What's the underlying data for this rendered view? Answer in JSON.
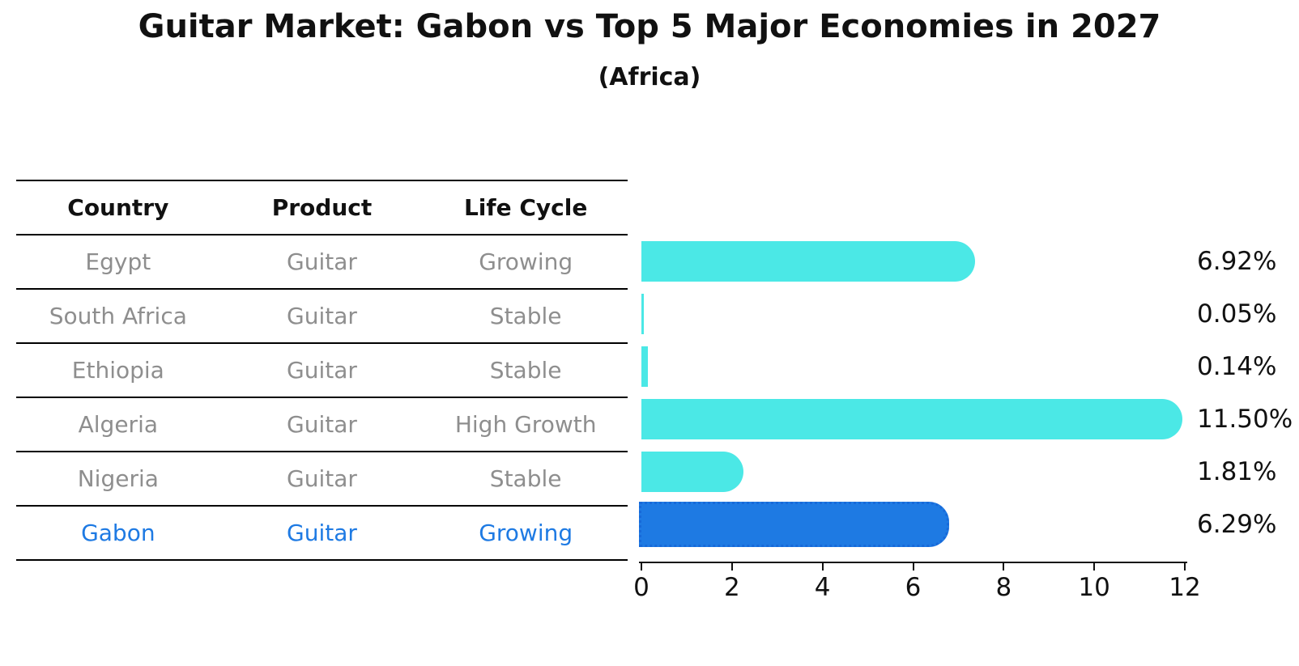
{
  "title": "Guitar Market: Gabon vs Top 5 Major Economies in 2027",
  "subtitle": "(Africa)",
  "table": {
    "headers": [
      "Country",
      "Product",
      "Life Cycle"
    ],
    "rows": [
      {
        "country": "Egypt",
        "product": "Guitar",
        "life_cycle": "Growing",
        "highlighted": false
      },
      {
        "country": "South Africa",
        "product": "Guitar",
        "life_cycle": "Stable",
        "highlighted": false
      },
      {
        "country": "Ethiopia",
        "product": "Guitar",
        "life_cycle": "Stable",
        "highlighted": false
      },
      {
        "country": "Algeria",
        "product": "Guitar",
        "life_cycle": "High Growth",
        "highlighted": false
      },
      {
        "country": "Nigeria",
        "product": "Guitar",
        "life_cycle": "Stable",
        "highlighted": false
      },
      {
        "country": "Gabon",
        "product": "Guitar",
        "life_cycle": "Growing",
        "highlighted": true
      }
    ]
  },
  "chart_data": {
    "type": "bar",
    "orientation": "horizontal",
    "title": "Guitar Market: Gabon vs Top 5 Major Economies in 2027",
    "subtitle": "(Africa)",
    "categories": [
      "Egypt",
      "South Africa",
      "Ethiopia",
      "Algeria",
      "Nigeria",
      "Gabon"
    ],
    "values": [
      6.92,
      0.05,
      0.14,
      11.5,
      1.81,
      6.29
    ],
    "value_labels": [
      "6.92%",
      "0.05%",
      "0.14%",
      "11.50%",
      "1.81%",
      "6.29%"
    ],
    "xlim": [
      0,
      12
    ],
    "x_ticks": [
      0,
      2,
      4,
      6,
      8,
      10,
      12
    ],
    "grid": false,
    "legend": false,
    "bar_color": "#4BE8E6",
    "highlight_bar_color": "#1E7AE3",
    "highlight_border_color": "#1769D9",
    "highlight_index": 5
  },
  "colors": {
    "background": "#FFFFFF",
    "text": "#111111",
    "table_text": "#8E8E8E",
    "highlight_text": "#1E7AE3",
    "accent_cyan": "#4BE8E6",
    "accent_blue": "#1E7AE3"
  }
}
